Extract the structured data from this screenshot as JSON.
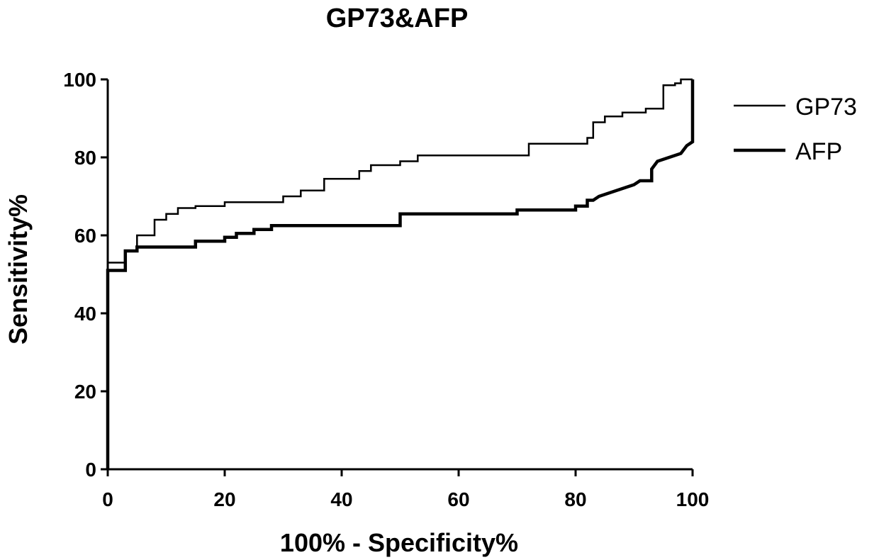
{
  "chart_data": {
    "type": "line",
    "title": "GP73&AFP",
    "xlabel": "100% - Specificity%",
    "ylabel": "Sensitivity%",
    "xlim": [
      0,
      100
    ],
    "ylim": [
      0,
      100
    ],
    "x_ticks": [
      "0",
      "20",
      "40",
      "60",
      "80",
      "100"
    ],
    "y_ticks": [
      "0",
      "20",
      "40",
      "60",
      "80",
      "100"
    ],
    "grid": false,
    "legend_position": "top-right",
    "line_color": "#000000",
    "series": [
      {
        "name": "GP73",
        "points": [
          [
            0,
            0
          ],
          [
            0,
            53
          ],
          [
            3,
            53
          ],
          [
            3,
            56
          ],
          [
            5,
            56
          ],
          [
            5,
            60
          ],
          [
            8,
            60
          ],
          [
            8,
            64
          ],
          [
            10,
            64
          ],
          [
            10,
            65.5
          ],
          [
            12,
            65.5
          ],
          [
            12,
            67
          ],
          [
            15,
            67
          ],
          [
            15,
            67.5
          ],
          [
            20,
            67.5
          ],
          [
            20,
            68.5
          ],
          [
            30,
            68.5
          ],
          [
            30,
            70
          ],
          [
            33,
            70
          ],
          [
            33,
            71.5
          ],
          [
            37,
            71.5
          ],
          [
            37,
            74.5
          ],
          [
            43,
            74.5
          ],
          [
            43,
            76.5
          ],
          [
            45,
            76.5
          ],
          [
            45,
            78
          ],
          [
            50,
            78
          ],
          [
            50,
            79
          ],
          [
            53,
            79
          ],
          [
            53,
            80.5
          ],
          [
            72,
            80.5
          ],
          [
            72,
            83.5
          ],
          [
            82,
            83.5
          ],
          [
            82,
            85
          ],
          [
            83,
            85
          ],
          [
            83,
            89
          ],
          [
            85,
            89
          ],
          [
            85,
            90.5
          ],
          [
            88,
            90.5
          ],
          [
            88,
            91.5
          ],
          [
            92,
            91.5
          ],
          [
            92,
            92.5
          ],
          [
            95,
            92.5
          ],
          [
            95,
            98.5
          ],
          [
            97,
            98.5
          ],
          [
            97,
            99
          ],
          [
            98,
            99
          ],
          [
            98,
            100
          ],
          [
            100,
            100
          ]
        ]
      },
      {
        "name": "AFP",
        "points": [
          [
            0,
            0
          ],
          [
            0,
            51
          ],
          [
            3,
            51
          ],
          [
            3,
            56
          ],
          [
            5,
            56
          ],
          [
            5,
            57
          ],
          [
            15,
            57
          ],
          [
            15,
            58.5
          ],
          [
            20,
            58.5
          ],
          [
            20,
            59.5
          ],
          [
            22,
            59.5
          ],
          [
            22,
            60.5
          ],
          [
            25,
            60.5
          ],
          [
            25,
            61.5
          ],
          [
            28,
            61.5
          ],
          [
            28,
            62.5
          ],
          [
            50,
            62.5
          ],
          [
            50,
            65.5
          ],
          [
            70,
            65.5
          ],
          [
            70,
            66.5
          ],
          [
            80,
            66.5
          ],
          [
            80,
            67.5
          ],
          [
            82,
            67.5
          ],
          [
            82,
            69
          ],
          [
            83,
            69
          ],
          [
            84,
            70
          ],
          [
            86,
            71
          ],
          [
            88,
            72
          ],
          [
            90,
            73
          ],
          [
            91,
            74
          ],
          [
            93,
            74
          ],
          [
            93,
            77
          ],
          [
            94,
            79
          ],
          [
            96,
            80
          ],
          [
            98,
            81
          ],
          [
            99,
            83
          ],
          [
            100,
            84
          ],
          [
            100,
            100
          ]
        ]
      }
    ]
  }
}
